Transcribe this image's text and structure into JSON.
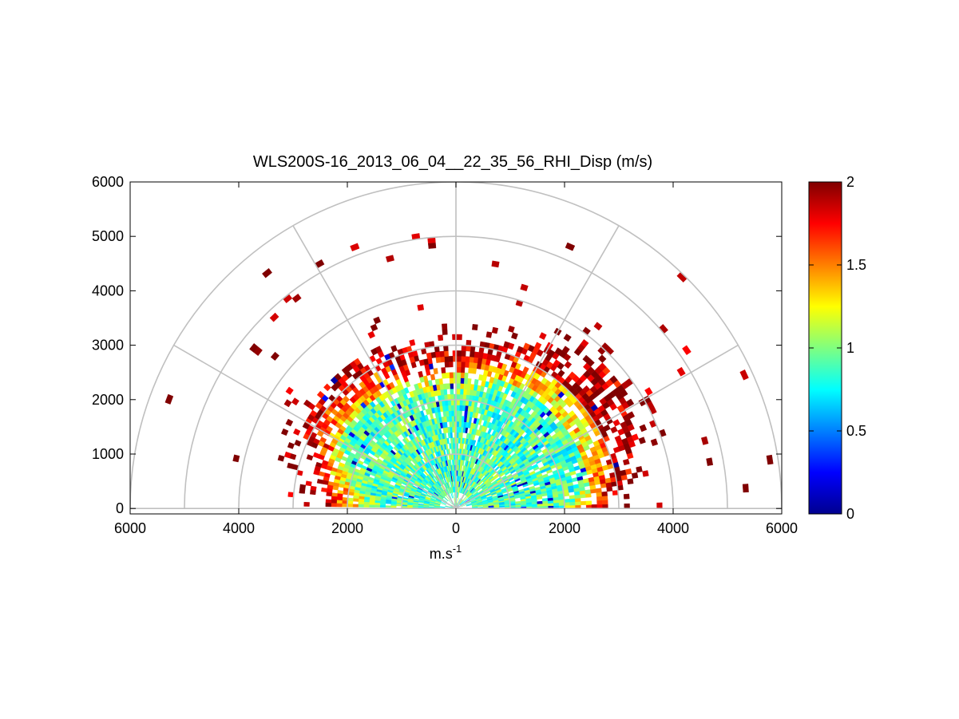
{
  "chart_data": {
    "type": "heatmap",
    "subtype": "polar-sector-rhi",
    "title": "WLS200S-16_2013_06_04__22_35_56_RHI_Disp (m/s)",
    "xlabel_base": "m.s",
    "xlabel_sup": "-1",
    "xlim": [
      -6000,
      6000
    ],
    "ylim": [
      -100,
      6000
    ],
    "xticks": [
      -6000,
      -4000,
      -2000,
      0,
      2000,
      4000,
      6000
    ],
    "xtick_labels": [
      "6000",
      "4000",
      "2000",
      "0",
      "2000",
      "4000",
      "6000"
    ],
    "yticks": [
      0,
      1000,
      2000,
      3000,
      4000,
      5000,
      6000
    ],
    "ytick_labels": [
      "0",
      "1000",
      "2000",
      "3000",
      "4000",
      "5000",
      "6000"
    ],
    "polar_grid": {
      "rings": [
        1000,
        2000,
        3000,
        4000,
        5000,
        6000
      ],
      "spokes_deg": [
        0,
        30,
        60,
        90,
        120,
        150,
        180
      ]
    },
    "colorbar": {
      "colormap": "jet",
      "clim": [
        0,
        2
      ],
      "ticks": [
        0,
        0.5,
        1,
        1.5,
        2
      ],
      "tick_labels": [
        "0",
        "0.5",
        "1",
        "1.5",
        "2"
      ]
    },
    "field_summary": [
      {
        "range_min": 0,
        "range_max": 2500,
        "dispersion_typical": 0.9,
        "note": "dense core, mostly cyan-green"
      },
      {
        "range_min": 2500,
        "range_max": 3000,
        "dispersion_typical": 1.3,
        "note": "yellow-orange mix"
      },
      {
        "range_min": 3000,
        "range_max": 4200,
        "dispersion_typical": 1.9,
        "note": "mostly red / dark red, sparse"
      },
      {
        "range_min": 4200,
        "range_max": 6000,
        "dispersion_typical": 2.0,
        "note": "isolated dark red cells"
      }
    ]
  }
}
